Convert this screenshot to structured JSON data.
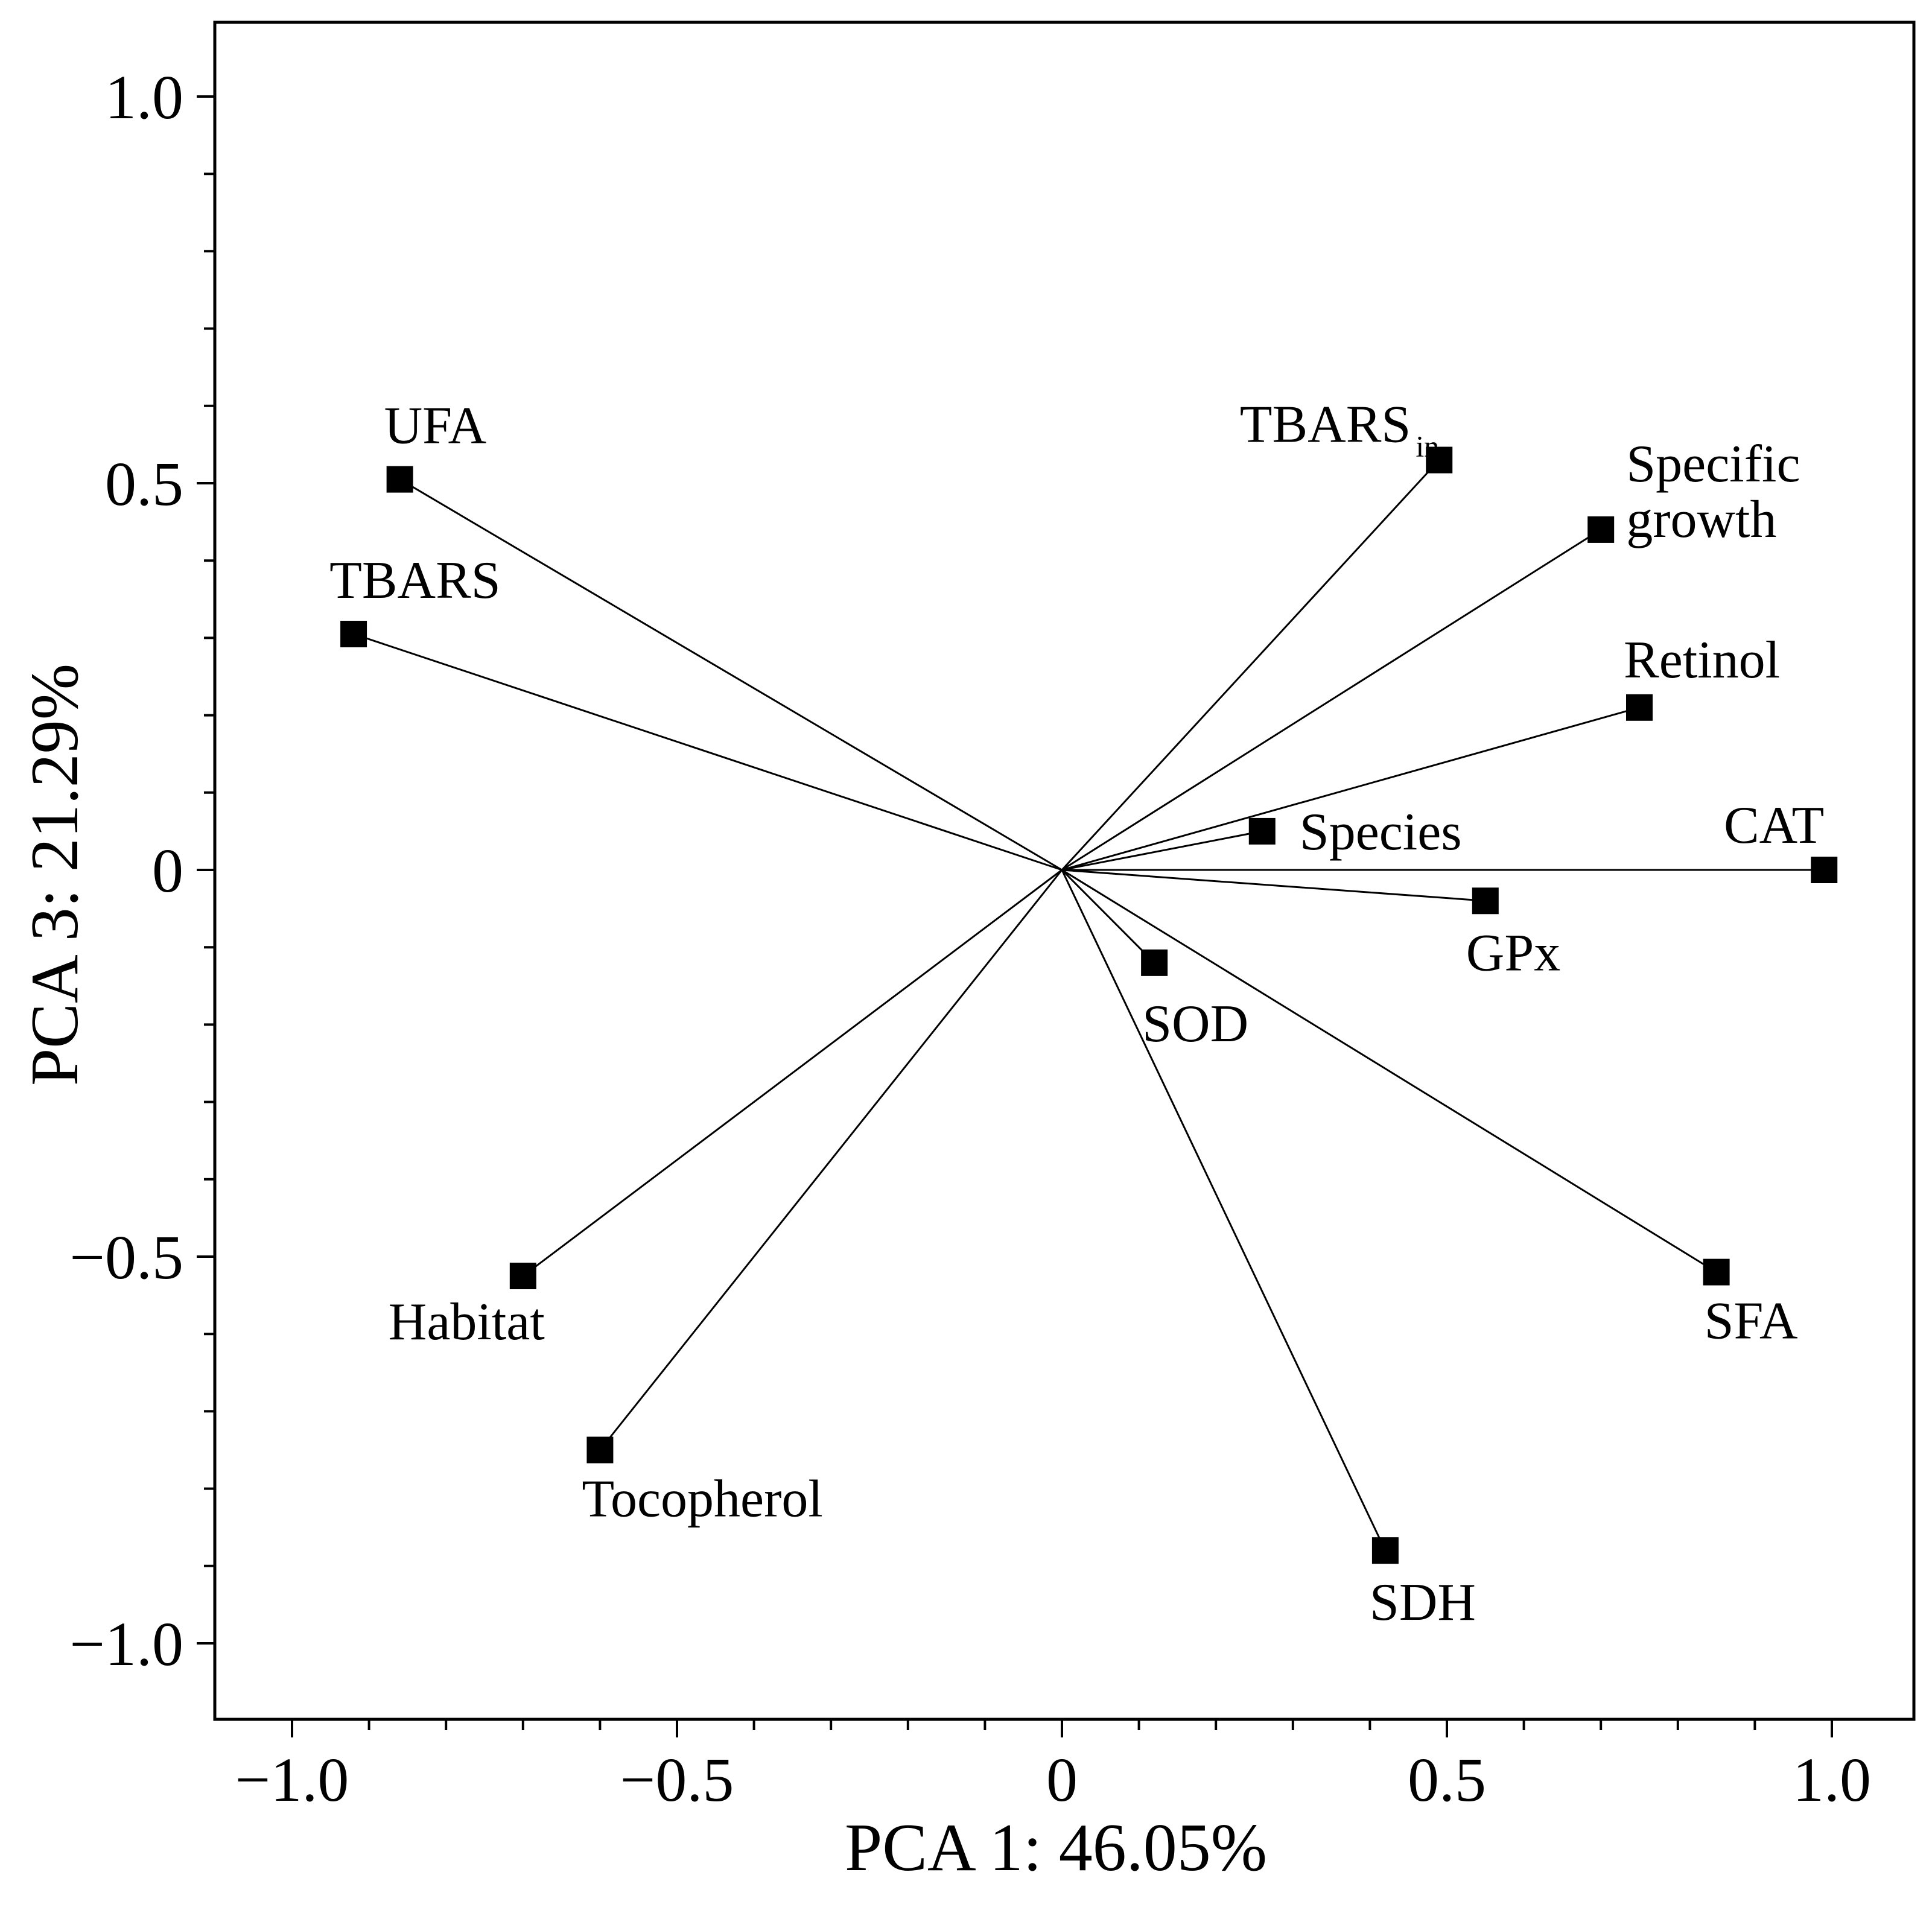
{
  "chart_data": {
    "type": "scatter",
    "title": "",
    "xlabel": "PCA 1: 46.05%",
    "ylabel": "PCA 3: 21.29%",
    "xlim": [
      -1.1,
      1.1
    ],
    "ylim": [
      -1.1,
      1.1
    ],
    "x_ticks": [
      -1.0,
      -0.5,
      0,
      0.5,
      1.0
    ],
    "x_tick_labels": [
      "−1.0",
      "−0.5",
      "0",
      "0.5",
      "1.0"
    ],
    "y_ticks": [
      1.0,
      0.5,
      0,
      -0.5,
      -1.0
    ],
    "y_tick_labels": [
      "1.0",
      "0.5",
      "0",
      "−0.5",
      "−1.0"
    ],
    "grid": false,
    "vectors_from_origin": true,
    "points": [
      {
        "label": "UFA",
        "x": -0.86,
        "y": 0.505
      },
      {
        "label": "TBARS",
        "x": -0.92,
        "y": 0.305
      },
      {
        "label": "TBARS",
        "subscript": "in",
        "x": 0.49,
        "y": 0.53
      },
      {
        "label": "Specific growth",
        "x": 0.7,
        "y": 0.44
      },
      {
        "label": "Retinol",
        "x": 0.75,
        "y": 0.21
      },
      {
        "label": "Species",
        "x": 0.26,
        "y": 0.05
      },
      {
        "label": "CAT",
        "x": 0.99,
        "y": 0.0
      },
      {
        "label": "GPx",
        "x": 0.55,
        "y": -0.04
      },
      {
        "label": "SOD",
        "x": 0.12,
        "y": -0.12
      },
      {
        "label": "SFA",
        "x": 0.85,
        "y": -0.52
      },
      {
        "label": "SDH",
        "x": 0.42,
        "y": -0.88
      },
      {
        "label": "Habitat",
        "x": -0.7,
        "y": -0.525
      },
      {
        "label": "Tocopherol",
        "x": -0.6,
        "y": -0.75
      }
    ]
  }
}
